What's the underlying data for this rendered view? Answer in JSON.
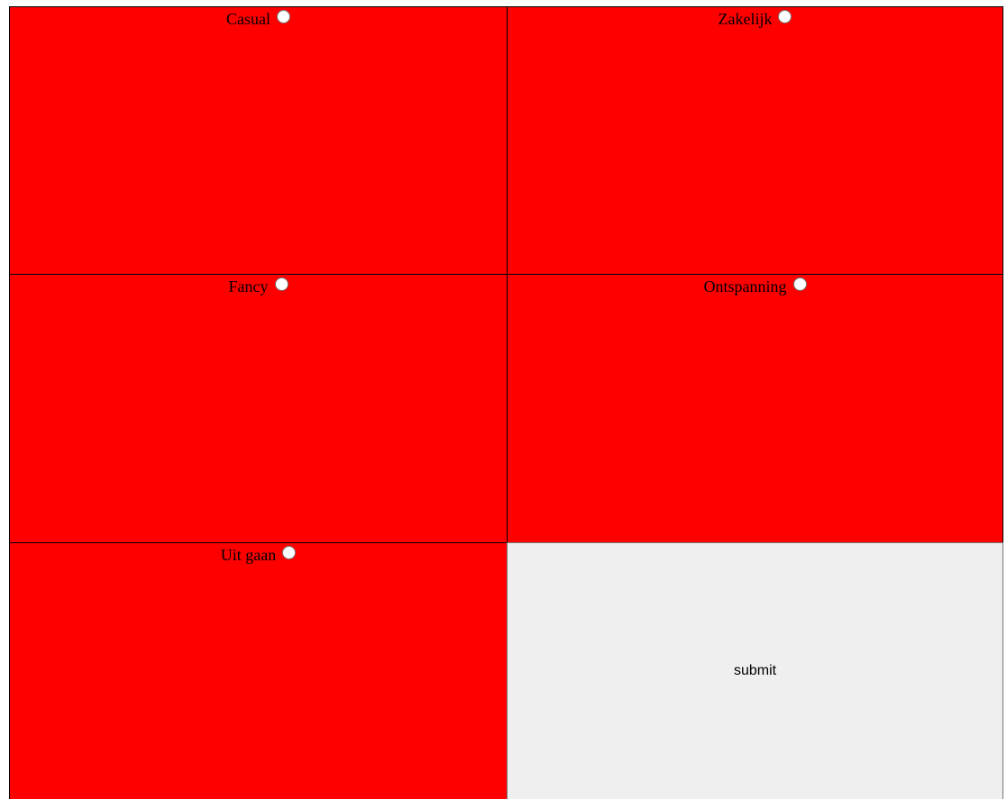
{
  "options": [
    {
      "label": "Casual"
    },
    {
      "label": "Zakelijk"
    },
    {
      "label": "Fancy"
    },
    {
      "label": "Ontspanning"
    },
    {
      "label": "Uit gaan"
    }
  ],
  "submit": {
    "label": "submit"
  },
  "colors": {
    "cell_background": "#ff0000",
    "submit_background": "#efefef"
  }
}
